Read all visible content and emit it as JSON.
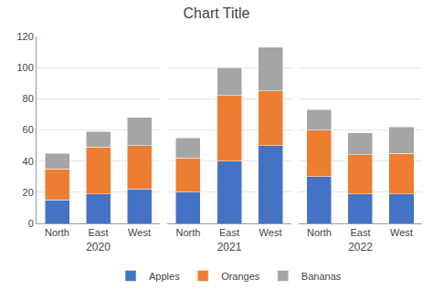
{
  "chart_data": [
    {
      "type": "bar",
      "title": "Chart Title",
      "stacked": true,
      "grid": true,
      "legend": "bottom",
      "xlabel": "2020",
      "categories": [
        "North",
        "East",
        "West"
      ],
      "series": [
        {
          "name": "Apples",
          "color": "#4472C4",
          "values": [
            15,
            19,
            22
          ]
        },
        {
          "name": "Oranges",
          "color": "#ED7D31",
          "values": [
            20,
            30,
            28
          ]
        },
        {
          "name": "Bananas",
          "color": "#A5A5A5",
          "values": [
            10,
            10,
            18
          ]
        }
      ],
      "ylim": [
        0,
        120
      ],
      "yticks": [
        0,
        20,
        40,
        60,
        80,
        100,
        120
      ]
    },
    {
      "type": "bar",
      "stacked": true,
      "grid": true,
      "tick_labels": "x",
      "xlabel": "2021",
      "categories": [
        "North",
        "East",
        "West"
      ],
      "series": [
        {
          "name": "Apples",
          "color": "#4472C4",
          "values": [
            20,
            40,
            50
          ]
        },
        {
          "name": "Oranges",
          "color": "#ED7D31",
          "values": [
            22,
            42,
            35
          ]
        },
        {
          "name": "Bananas",
          "color": "#A5A5A5",
          "values": [
            13,
            18,
            28
          ]
        }
      ],
      "ylim": [
        0,
        120
      ],
      "yticks": [
        0,
        20,
        40,
        60,
        80,
        100,
        120
      ]
    },
    {
      "type": "bar",
      "stacked": true,
      "grid": true,
      "tick_labels": "x",
      "xlabel": "2022",
      "categories": [
        "North",
        "East",
        "West"
      ],
      "series": [
        {
          "name": "Apples",
          "color": "#4472C4",
          "values": [
            30,
            19,
            19
          ]
        },
        {
          "name": "Oranges",
          "color": "#ED7D31",
          "values": [
            30,
            25,
            26
          ]
        },
        {
          "name": "Bananas",
          "color": "#A5A5A5",
          "values": [
            13,
            14,
            17
          ]
        }
      ],
      "ylim": [
        0,
        120
      ],
      "yticks": [
        0,
        20,
        40,
        60,
        80,
        100,
        120
      ]
    }
  ]
}
